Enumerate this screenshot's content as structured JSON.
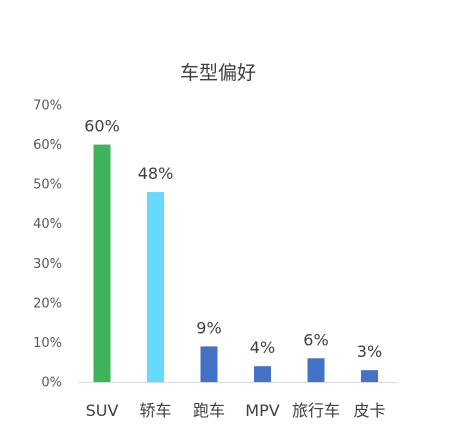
{
  "chart_data": {
    "type": "bar",
    "title": "车型偏好",
    "xlabel": "",
    "ylabel": "",
    "categories": [
      "SUV",
      "轿车",
      "跑车",
      "MPV",
      "旅行车",
      "皮卡"
    ],
    "values": [
      60,
      48,
      9,
      4,
      6,
      3
    ],
    "data_labels": [
      "60%",
      "48%",
      "9%",
      "4%",
      "6%",
      "3%"
    ],
    "bar_colors": [
      "#3db35a",
      "#66d9ff",
      "#4472c4",
      "#4472c4",
      "#4472c4",
      "#4472c4"
    ],
    "ylim": [
      0,
      70
    ],
    "yticks": [
      {
        "value": 0,
        "label": "0%"
      },
      {
        "value": 10,
        "label": "10%"
      },
      {
        "value": 20,
        "label": "20%"
      },
      {
        "value": 30,
        "label": "30%"
      },
      {
        "value": 40,
        "label": "40%"
      },
      {
        "value": 50,
        "label": "50%"
      },
      {
        "value": 60,
        "label": "60%"
      },
      {
        "value": 70,
        "label": "70%"
      }
    ],
    "grid": false,
    "legend": "none"
  }
}
